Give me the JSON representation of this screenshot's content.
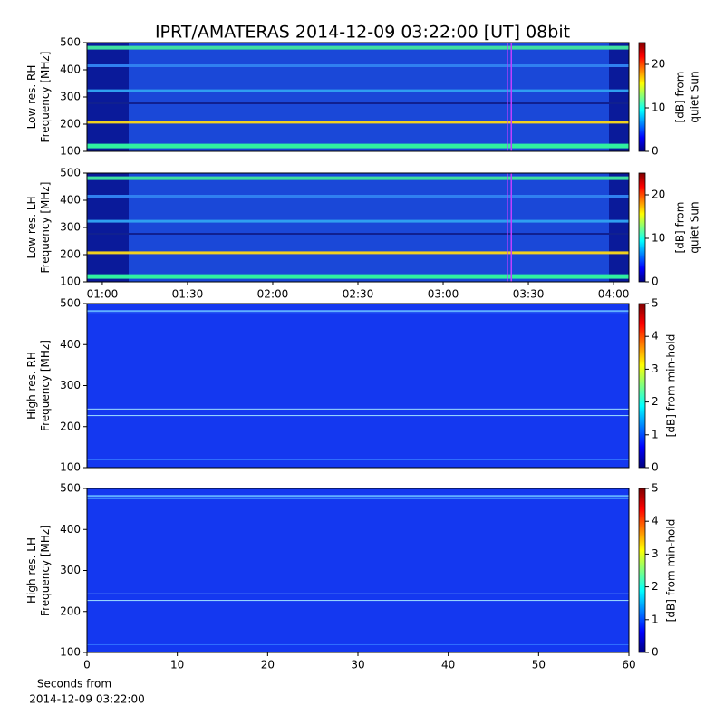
{
  "title": "IPRT/AMATERAS 2014-12-09 03:22:00 [UT]   08bit",
  "chart_data": [
    {
      "type": "spectrogram",
      "ylabel": [
        "Low res. RH",
        "Frequency [MHz]"
      ],
      "ylim": [
        100,
        500
      ],
      "yticks": [
        100,
        200,
        300,
        400,
        500
      ],
      "clabel": [
        "[dB] from",
        "quiet Sun"
      ],
      "clim": [
        0,
        25
      ],
      "cticks": [
        0,
        10,
        20
      ],
      "highlight_x": [
        202.6,
        204
      ],
      "highlight_color": "#c040ff"
    },
    {
      "type": "spectrogram",
      "ylabel": [
        "Low res. LH",
        "Frequency [MHz]"
      ],
      "ylim": [
        100,
        500
      ],
      "yticks": [
        100,
        200,
        300,
        400,
        500
      ],
      "xlim": [
        54.6,
        245.4
      ],
      "xticks": [
        {
          "value": 60,
          "label": "01:00"
        },
        {
          "value": 90,
          "label": "01:30"
        },
        {
          "value": 120,
          "label": "02:00"
        },
        {
          "value": 150,
          "label": "02:30"
        },
        {
          "value": 180,
          "label": "03:00"
        },
        {
          "value": 210,
          "label": "03:30"
        },
        {
          "value": 240,
          "label": "04:00"
        }
      ],
      "clabel": [
        "[dB] from",
        "quiet Sun"
      ],
      "clim": [
        0,
        25
      ],
      "cticks": [
        0,
        10,
        20
      ],
      "highlight_x": [
        202.6,
        204
      ],
      "highlight_color": "#c040ff"
    },
    {
      "type": "spectrogram",
      "ylabel": [
        "High res. RH",
        "Frequency [MHz]"
      ],
      "ylim": [
        100,
        500
      ],
      "yticks": [
        100,
        200,
        300,
        400,
        500
      ],
      "clabel": [
        "[dB] from min-hold"
      ],
      "clim": [
        0,
        5
      ],
      "cticks": [
        0,
        1,
        2,
        3,
        4,
        5
      ]
    },
    {
      "type": "spectrogram",
      "ylabel": [
        "High res. LH",
        "Frequency [MHz]"
      ],
      "ylim": [
        100,
        500
      ],
      "yticks": [
        100,
        200,
        300,
        400,
        500
      ],
      "xlim": [
        0,
        60
      ],
      "xticks": [
        0,
        10,
        20,
        30,
        40,
        50,
        60
      ],
      "xlabel": [
        "Seconds from",
        "2014-12-09 03:22:00"
      ],
      "clabel": [
        "[dB] from min-hold"
      ],
      "clim": [
        0,
        5
      ],
      "cticks": [
        0,
        1,
        2,
        3,
        4,
        5
      ]
    }
  ]
}
